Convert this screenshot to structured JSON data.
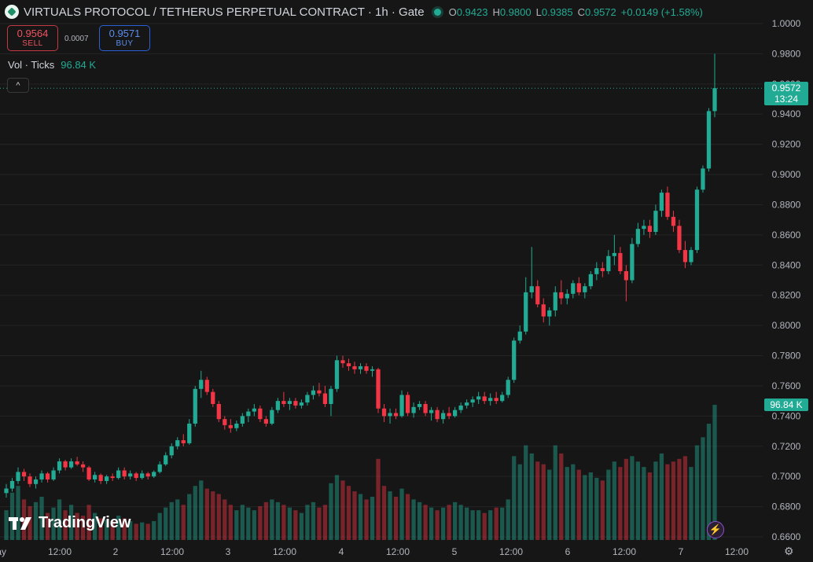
{
  "header": {
    "symbol_title": "VIRTUALS PROTOCOL / TETHERUS PERPETUAL CONTRACT · 1h · Gate",
    "ohlc": {
      "o_label": "O",
      "o_value": "0.9423",
      "h_label": "H",
      "h_value": "0.9800",
      "l_label": "L",
      "l_value": "0.9385",
      "c_label": "C",
      "c_value": "0.9572",
      "change": "+0.0149 (+1.58%)"
    }
  },
  "trade": {
    "sell_price": "0.9564",
    "sell_label": "SELL",
    "spread": "0.0007",
    "buy_price": "0.9571",
    "buy_label": "BUY"
  },
  "volume_legend": {
    "name": "Vol · Ticks",
    "value": "96.84 K"
  },
  "badges": {
    "last_price": "0.9572",
    "countdown": "13:24",
    "volume": "96.84 K"
  },
  "branding": {
    "logo_text": "TradingView"
  },
  "icons": {
    "collapse": "chevron-up-icon",
    "bolt": "lightning-icon",
    "settings": "gear-icon"
  },
  "colors": {
    "up": "#22ab94",
    "down": "#f23645",
    "background": "#161616",
    "grid": "#242424"
  },
  "chart_data": {
    "type": "candlestick",
    "symbol": "VIRTUALS PROTOCOL / TETHERUS PERPETUAL CONTRACT",
    "interval": "1h",
    "exchange": "Gate",
    "ylim": [
      0.66,
      1.0
    ],
    "y_ticks": [
      "1.0000",
      "0.9800",
      "0.9600",
      "0.9400",
      "0.9200",
      "0.9000",
      "0.8800",
      "0.8600",
      "0.8400",
      "0.8200",
      "0.8000",
      "0.7800",
      "0.7600",
      "0.7400",
      "0.7200",
      "0.7000",
      "0.6800",
      "0.6600"
    ],
    "x_ticks": [
      "ay",
      "12:00",
      "2",
      "12:00",
      "3",
      "12:00",
      "4",
      "12:00",
      "5",
      "12:00",
      "6",
      "12:00",
      "7",
      "12:00"
    ],
    "last_close": 0.9572,
    "candles": [
      [
        0.689,
        0.695,
        0.686,
        0.692,
        22
      ],
      [
        0.692,
        0.699,
        0.69,
        0.697,
        35
      ],
      [
        0.697,
        0.706,
        0.695,
        0.703,
        40
      ],
      [
        0.703,
        0.705,
        0.697,
        0.7,
        30
      ],
      [
        0.7,
        0.702,
        0.693,
        0.695,
        25
      ],
      [
        0.695,
        0.7,
        0.692,
        0.698,
        28
      ],
      [
        0.698,
        0.704,
        0.696,
        0.702,
        32
      ],
      [
        0.702,
        0.703,
        0.696,
        0.698,
        20
      ],
      [
        0.698,
        0.706,
        0.697,
        0.704,
        24
      ],
      [
        0.704,
        0.712,
        0.702,
        0.71,
        30
      ],
      [
        0.71,
        0.711,
        0.704,
        0.706,
        22
      ],
      [
        0.706,
        0.712,
        0.705,
        0.71,
        26
      ],
      [
        0.71,
        0.713,
        0.707,
        0.708,
        20
      ],
      [
        0.708,
        0.71,
        0.703,
        0.706,
        18
      ],
      [
        0.706,
        0.707,
        0.697,
        0.698,
        26
      ],
      [
        0.698,
        0.703,
        0.696,
        0.701,
        20
      ],
      [
        0.701,
        0.702,
        0.695,
        0.697,
        16
      ],
      [
        0.697,
        0.701,
        0.695,
        0.7,
        15
      ],
      [
        0.7,
        0.702,
        0.697,
        0.699,
        14
      ],
      [
        0.699,
        0.706,
        0.698,
        0.704,
        18
      ],
      [
        0.704,
        0.706,
        0.698,
        0.7,
        16
      ],
      [
        0.7,
        0.704,
        0.698,
        0.702,
        14
      ],
      [
        0.702,
        0.703,
        0.697,
        0.699,
        12
      ],
      [
        0.699,
        0.704,
        0.698,
        0.702,
        13
      ],
      [
        0.702,
        0.703,
        0.698,
        0.7,
        12
      ],
      [
        0.7,
        0.704,
        0.699,
        0.703,
        14
      ],
      [
        0.703,
        0.71,
        0.702,
        0.708,
        20
      ],
      [
        0.708,
        0.716,
        0.707,
        0.714,
        24
      ],
      [
        0.714,
        0.722,
        0.712,
        0.72,
        28
      ],
      [
        0.72,
        0.726,
        0.718,
        0.724,
        30
      ],
      [
        0.724,
        0.728,
        0.72,
        0.722,
        26
      ],
      [
        0.722,
        0.738,
        0.721,
        0.735,
        34
      ],
      [
        0.735,
        0.76,
        0.733,
        0.758,
        40
      ],
      [
        0.758,
        0.77,
        0.752,
        0.764,
        44
      ],
      [
        0.764,
        0.766,
        0.754,
        0.756,
        38
      ],
      [
        0.756,
        0.758,
        0.746,
        0.748,
        36
      ],
      [
        0.748,
        0.75,
        0.736,
        0.738,
        34
      ],
      [
        0.738,
        0.74,
        0.731,
        0.734,
        30
      ],
      [
        0.734,
        0.738,
        0.729,
        0.732,
        26
      ],
      [
        0.732,
        0.737,
        0.73,
        0.735,
        22
      ],
      [
        0.735,
        0.742,
        0.733,
        0.74,
        26
      ],
      [
        0.74,
        0.745,
        0.736,
        0.743,
        24
      ],
      [
        0.743,
        0.748,
        0.74,
        0.745,
        22
      ],
      [
        0.745,
        0.747,
        0.736,
        0.738,
        25
      ],
      [
        0.738,
        0.74,
        0.733,
        0.735,
        28
      ],
      [
        0.735,
        0.746,
        0.734,
        0.744,
        30
      ],
      [
        0.744,
        0.752,
        0.742,
        0.75,
        28
      ],
      [
        0.75,
        0.756,
        0.746,
        0.748,
        26
      ],
      [
        0.748,
        0.752,
        0.744,
        0.75,
        24
      ],
      [
        0.75,
        0.752,
        0.745,
        0.747,
        22
      ],
      [
        0.747,
        0.751,
        0.745,
        0.749,
        20
      ],
      [
        0.749,
        0.756,
        0.747,
        0.754,
        26
      ],
      [
        0.754,
        0.76,
        0.751,
        0.757,
        28
      ],
      [
        0.757,
        0.762,
        0.753,
        0.755,
        24
      ],
      [
        0.755,
        0.76,
        0.746,
        0.748,
        26
      ],
      [
        0.748,
        0.76,
        0.74,
        0.758,
        42
      ],
      [
        0.758,
        0.78,
        0.756,
        0.777,
        48
      ],
      [
        0.777,
        0.78,
        0.772,
        0.775,
        44
      ],
      [
        0.775,
        0.778,
        0.77,
        0.773,
        40
      ],
      [
        0.773,
        0.776,
        0.768,
        0.771,
        36
      ],
      [
        0.771,
        0.775,
        0.768,
        0.773,
        34
      ],
      [
        0.773,
        0.775,
        0.768,
        0.77,
        30
      ],
      [
        0.77,
        0.773,
        0.766,
        0.771,
        32
      ],
      [
        0.771,
        0.772,
        0.742,
        0.745,
        60
      ],
      [
        0.745,
        0.748,
        0.736,
        0.74,
        40
      ],
      [
        0.74,
        0.745,
        0.735,
        0.742,
        36
      ],
      [
        0.742,
        0.745,
        0.738,
        0.74,
        32
      ],
      [
        0.74,
        0.757,
        0.739,
        0.754,
        38
      ],
      [
        0.754,
        0.756,
        0.74,
        0.742,
        34
      ],
      [
        0.742,
        0.749,
        0.739,
        0.746,
        30
      ],
      [
        0.746,
        0.75,
        0.744,
        0.748,
        28
      ],
      [
        0.748,
        0.75,
        0.74,
        0.742,
        26
      ],
      [
        0.742,
        0.746,
        0.737,
        0.744,
        24
      ],
      [
        0.744,
        0.746,
        0.736,
        0.738,
        22
      ],
      [
        0.738,
        0.744,
        0.735,
        0.742,
        24
      ],
      [
        0.742,
        0.746,
        0.738,
        0.74,
        26
      ],
      [
        0.74,
        0.746,
        0.739,
        0.744,
        28
      ],
      [
        0.744,
        0.749,
        0.742,
        0.747,
        26
      ],
      [
        0.747,
        0.751,
        0.745,
        0.749,
        24
      ],
      [
        0.749,
        0.753,
        0.746,
        0.751,
        22
      ],
      [
        0.751,
        0.756,
        0.748,
        0.753,
        22
      ],
      [
        0.753,
        0.756,
        0.748,
        0.75,
        20
      ],
      [
        0.75,
        0.755,
        0.747,
        0.752,
        22
      ],
      [
        0.752,
        0.756,
        0.748,
        0.75,
        24
      ],
      [
        0.75,
        0.756,
        0.749,
        0.754,
        24
      ],
      [
        0.754,
        0.766,
        0.752,
        0.764,
        30
      ],
      [
        0.764,
        0.792,
        0.762,
        0.79,
        62
      ],
      [
        0.79,
        0.8,
        0.788,
        0.796,
        56
      ],
      [
        0.796,
        0.832,
        0.794,
        0.822,
        70
      ],
      [
        0.822,
        0.852,
        0.818,
        0.826,
        64
      ],
      [
        0.826,
        0.83,
        0.812,
        0.814,
        58
      ],
      [
        0.814,
        0.818,
        0.802,
        0.806,
        56
      ],
      [
        0.806,
        0.812,
        0.8,
        0.81,
        52
      ],
      [
        0.81,
        0.826,
        0.806,
        0.822,
        70
      ],
      [
        0.822,
        0.83,
        0.814,
        0.818,
        64
      ],
      [
        0.818,
        0.824,
        0.814,
        0.821,
        54
      ],
      [
        0.821,
        0.83,
        0.818,
        0.828,
        56
      ],
      [
        0.828,
        0.832,
        0.82,
        0.822,
        52
      ],
      [
        0.822,
        0.828,
        0.818,
        0.826,
        48
      ],
      [
        0.826,
        0.836,
        0.824,
        0.834,
        50
      ],
      [
        0.834,
        0.842,
        0.83,
        0.838,
        46
      ],
      [
        0.838,
        0.842,
        0.832,
        0.836,
        44
      ],
      [
        0.836,
        0.85,
        0.834,
        0.846,
        52
      ],
      [
        0.846,
        0.86,
        0.84,
        0.848,
        58
      ],
      [
        0.848,
        0.852,
        0.834,
        0.836,
        54
      ],
      [
        0.836,
        0.84,
        0.816,
        0.83,
        60
      ],
      [
        0.83,
        0.858,
        0.828,
        0.854,
        62
      ],
      [
        0.854,
        0.868,
        0.852,
        0.864,
        58
      ],
      [
        0.864,
        0.87,
        0.86,
        0.866,
        54
      ],
      [
        0.866,
        0.87,
        0.858,
        0.862,
        50
      ],
      [
        0.862,
        0.88,
        0.86,
        0.876,
        58
      ],
      [
        0.876,
        0.89,
        0.872,
        0.888,
        64
      ],
      [
        0.888,
        0.892,
        0.87,
        0.872,
        56
      ],
      [
        0.872,
        0.876,
        0.862,
        0.866,
        58
      ],
      [
        0.866,
        0.87,
        0.848,
        0.85,
        60
      ],
      [
        0.85,
        0.856,
        0.838,
        0.842,
        62
      ],
      [
        0.842,
        0.852,
        0.84,
        0.85,
        54
      ],
      [
        0.85,
        0.892,
        0.848,
        0.89,
        70
      ],
      [
        0.89,
        0.906,
        0.888,
        0.904,
        76
      ],
      [
        0.904,
        0.944,
        0.902,
        0.942,
        86
      ],
      [
        0.942,
        0.98,
        0.938,
        0.9572,
        100
      ]
    ]
  }
}
